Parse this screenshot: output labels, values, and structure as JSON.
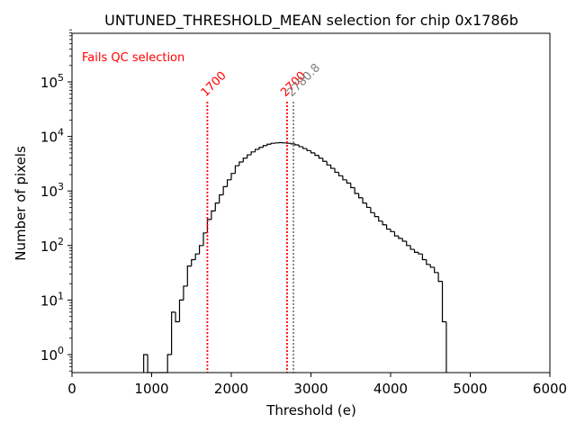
{
  "chart_data": {
    "type": "histogram",
    "title": "UNTUNED_THRESHOLD_MEAN selection for chip 0x1786b",
    "xlabel": "Threshold (e)",
    "ylabel": "Number of pixels",
    "xlim": [
      0,
      6000
    ],
    "ylim": [
      0.5,
      900000
    ],
    "yscale": "log",
    "xticks": [
      {
        "value": 0,
        "label": "0"
      },
      {
        "value": 1000,
        "label": "1000"
      },
      {
        "value": 2000,
        "label": "2000"
      },
      {
        "value": 3000,
        "label": "3000"
      },
      {
        "value": 4000,
        "label": "4000"
      },
      {
        "value": 5000,
        "label": "5000"
      },
      {
        "value": 6000,
        "label": "6000"
      }
    ],
    "yticks": [
      {
        "value": 1,
        "base": "10",
        "exp": "0"
      },
      {
        "value": 10,
        "base": "10",
        "exp": "1"
      },
      {
        "value": 100,
        "base": "10",
        "exp": "2"
      },
      {
        "value": 1000,
        "base": "10",
        "exp": "3"
      },
      {
        "value": 10000,
        "base": "10",
        "exp": "4"
      },
      {
        "value": 100000,
        "base": "10",
        "exp": "5"
      }
    ],
    "bin_width": 50,
    "bins": [
      [
        900,
        1
      ],
      [
        950,
        0
      ],
      [
        1000,
        0
      ],
      [
        1050,
        0
      ],
      [
        1100,
        0
      ],
      [
        1150,
        0
      ],
      [
        1200,
        1
      ],
      [
        1250,
        6
      ],
      [
        1300,
        4
      ],
      [
        1350,
        10
      ],
      [
        1400,
        18
      ],
      [
        1450,
        42
      ],
      [
        1500,
        55
      ],
      [
        1550,
        70
      ],
      [
        1600,
        100
      ],
      [
        1650,
        170
      ],
      [
        1700,
        300
      ],
      [
        1750,
        430
      ],
      [
        1800,
        600
      ],
      [
        1850,
        850
      ],
      [
        1900,
        1200
      ],
      [
        1950,
        1600
      ],
      [
        2000,
        2100
      ],
      [
        2050,
        2900
      ],
      [
        2100,
        3400
      ],
      [
        2150,
        4000
      ],
      [
        2200,
        4600
      ],
      [
        2250,
        5200
      ],
      [
        2300,
        5800
      ],
      [
        2350,
        6300
      ],
      [
        2400,
        6800
      ],
      [
        2450,
        7200
      ],
      [
        2500,
        7500
      ],
      [
        2550,
        7600
      ],
      [
        2600,
        7700
      ],
      [
        2650,
        7600
      ],
      [
        2700,
        7500
      ],
      [
        2750,
        7300
      ],
      [
        2800,
        7000
      ],
      [
        2850,
        6500
      ],
      [
        2900,
        6000
      ],
      [
        2950,
        5500
      ],
      [
        3000,
        5000
      ],
      [
        3050,
        4500
      ],
      [
        3100,
        4000
      ],
      [
        3150,
        3500
      ],
      [
        3200,
        3000
      ],
      [
        3250,
        2600
      ],
      [
        3300,
        2200
      ],
      [
        3350,
        1900
      ],
      [
        3400,
        1600
      ],
      [
        3450,
        1400
      ],
      [
        3500,
        1150
      ],
      [
        3550,
        900
      ],
      [
        3600,
        750
      ],
      [
        3650,
        600
      ],
      [
        3700,
        500
      ],
      [
        3750,
        400
      ],
      [
        3800,
        340
      ],
      [
        3850,
        280
      ],
      [
        3900,
        240
      ],
      [
        3950,
        200
      ],
      [
        4000,
        180
      ],
      [
        4050,
        150
      ],
      [
        4100,
        135
      ],
      [
        4150,
        120
      ],
      [
        4200,
        100
      ],
      [
        4250,
        85
      ],
      [
        4300,
        75
      ],
      [
        4350,
        70
      ],
      [
        4400,
        55
      ],
      [
        4450,
        45
      ],
      [
        4500,
        40
      ],
      [
        4550,
        32
      ],
      [
        4600,
        22
      ],
      [
        4650,
        4
      ]
    ],
    "annotations": [
      {
        "x": 1700,
        "label": "1700",
        "color": "#ff0000",
        "style": "dotted"
      },
      {
        "x": 2700,
        "label": "2700",
        "color": "#ff0000",
        "style": "dotted"
      },
      {
        "x": 2780,
        "label": "2780.8",
        "color": "#808080",
        "style": "dotted"
      }
    ],
    "fails_text": "Fails QC selection",
    "fails_color": "#ff0000"
  }
}
